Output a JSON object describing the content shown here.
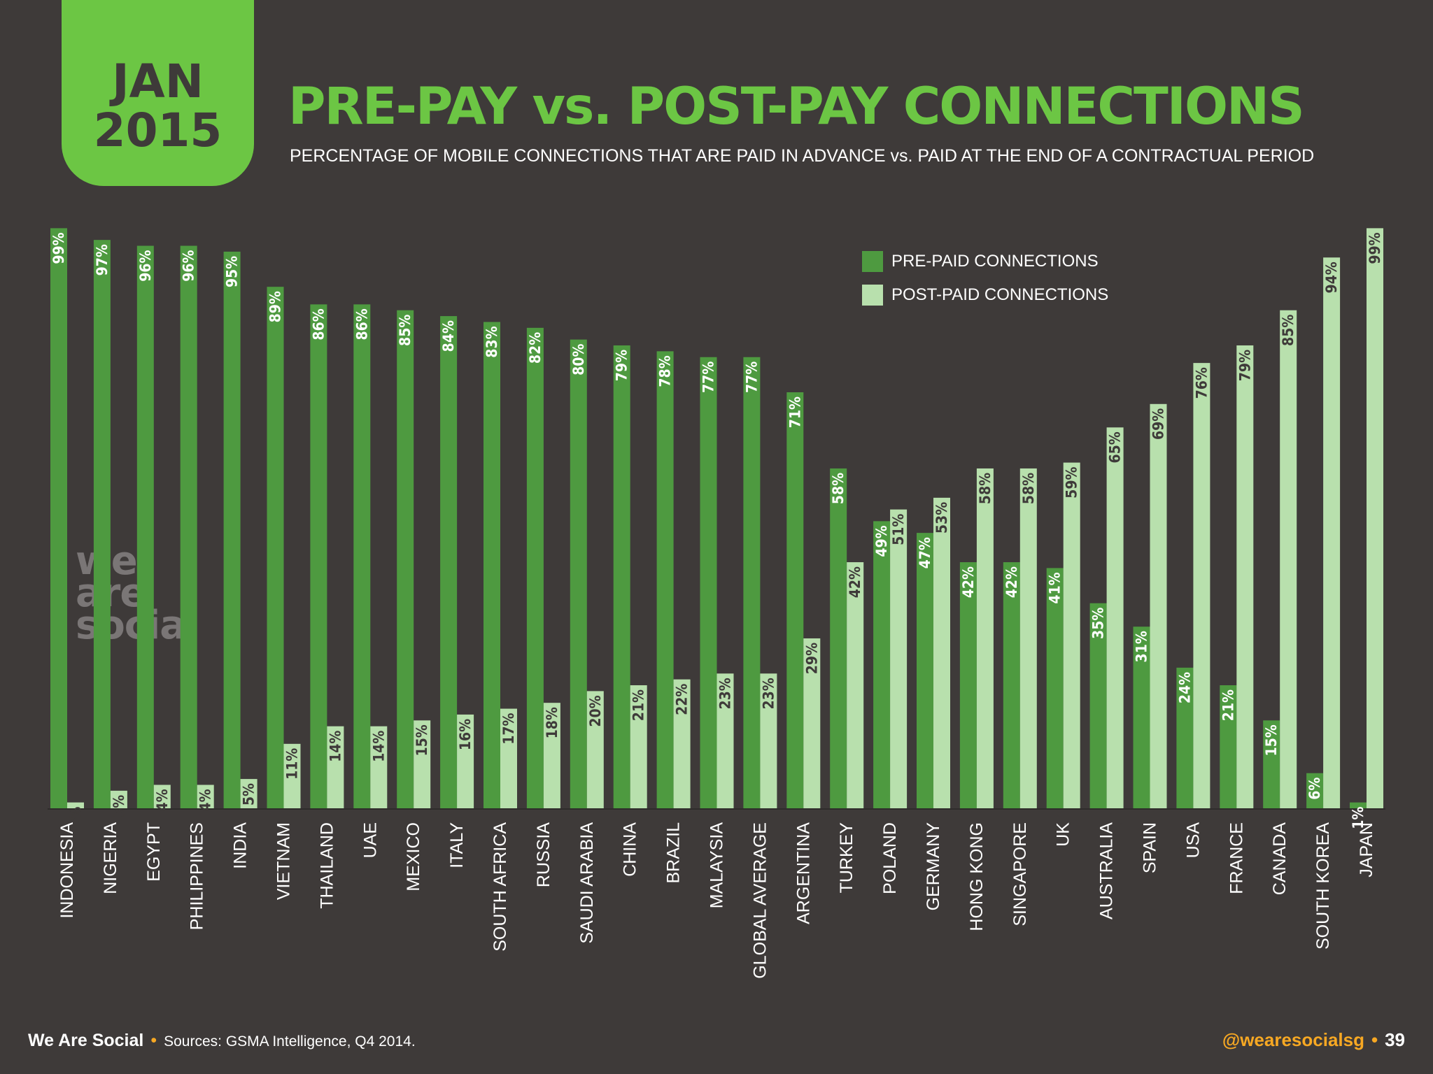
{
  "badge": {
    "month": "JAN",
    "year": "2015"
  },
  "title": "PRE-PAY vs. POST-PAY CONNECTIONS",
  "subtitle": "PERCENTAGE OF MOBILE CONNECTIONS THAT ARE PAID IN ADVANCE vs. PAID AT THE END OF A CONTRACTUAL PERIOD",
  "legend": {
    "prepaid": "PRE-PAID CONNECTIONS",
    "postpaid": "POST-PAID CONNECTIONS"
  },
  "watermark": [
    "we",
    "are",
    "social"
  ],
  "footer": {
    "brand": "We Are Social",
    "source": "Sources: GSMA Intelligence, Q4 2014.",
    "handle": "@wearesocialsg",
    "page": "39"
  },
  "colors": {
    "background": "#3e3a39",
    "accent": "#6cc644",
    "prepaid": "#4e9a40",
    "postpaid": "#b8e0ad",
    "footer_accent": "#f7a823"
  },
  "chart_data": {
    "type": "bar",
    "categories": [
      "INDONESIA",
      "NIGERIA",
      "EGYPT",
      "PHILIPPINES",
      "INDIA",
      "VIETNAM",
      "THAILAND",
      "UAE",
      "MEXICO",
      "ITALY",
      "SOUTH AFRICA",
      "RUSSIA",
      "SAUDI ARABIA",
      "CHINA",
      "BRAZIL",
      "MALAYSIA",
      "GLOBAL AVERAGE",
      "ARGENTINA",
      "TURKEY",
      "POLAND",
      "GERMANY",
      "HONG KONG",
      "SINGAPORE",
      "UK",
      "AUSTRALIA",
      "SPAIN",
      "USA",
      "FRANCE",
      "CANADA",
      "SOUTH KOREA",
      "JAPAN"
    ],
    "series": [
      {
        "name": "PRE-PAID CONNECTIONS",
        "values": [
          99,
          97,
          96,
          96,
          95,
          89,
          86,
          86,
          85,
          84,
          83,
          82,
          80,
          79,
          78,
          77,
          77,
          71,
          58,
          49,
          47,
          42,
          42,
          41,
          35,
          31,
          24,
          21,
          15,
          6,
          1
        ]
      },
      {
        "name": "POST-PAID CONNECTIONS",
        "values": [
          1,
          3,
          4,
          4,
          5,
          11,
          14,
          14,
          15,
          16,
          17,
          18,
          20,
          21,
          22,
          23,
          23,
          29,
          42,
          51,
          53,
          58,
          58,
          59,
          65,
          69,
          76,
          79,
          85,
          94,
          99
        ]
      }
    ],
    "value_suffix": "%",
    "ylim": [
      0,
      100
    ],
    "legend_position": "top-right",
    "grid": false
  }
}
